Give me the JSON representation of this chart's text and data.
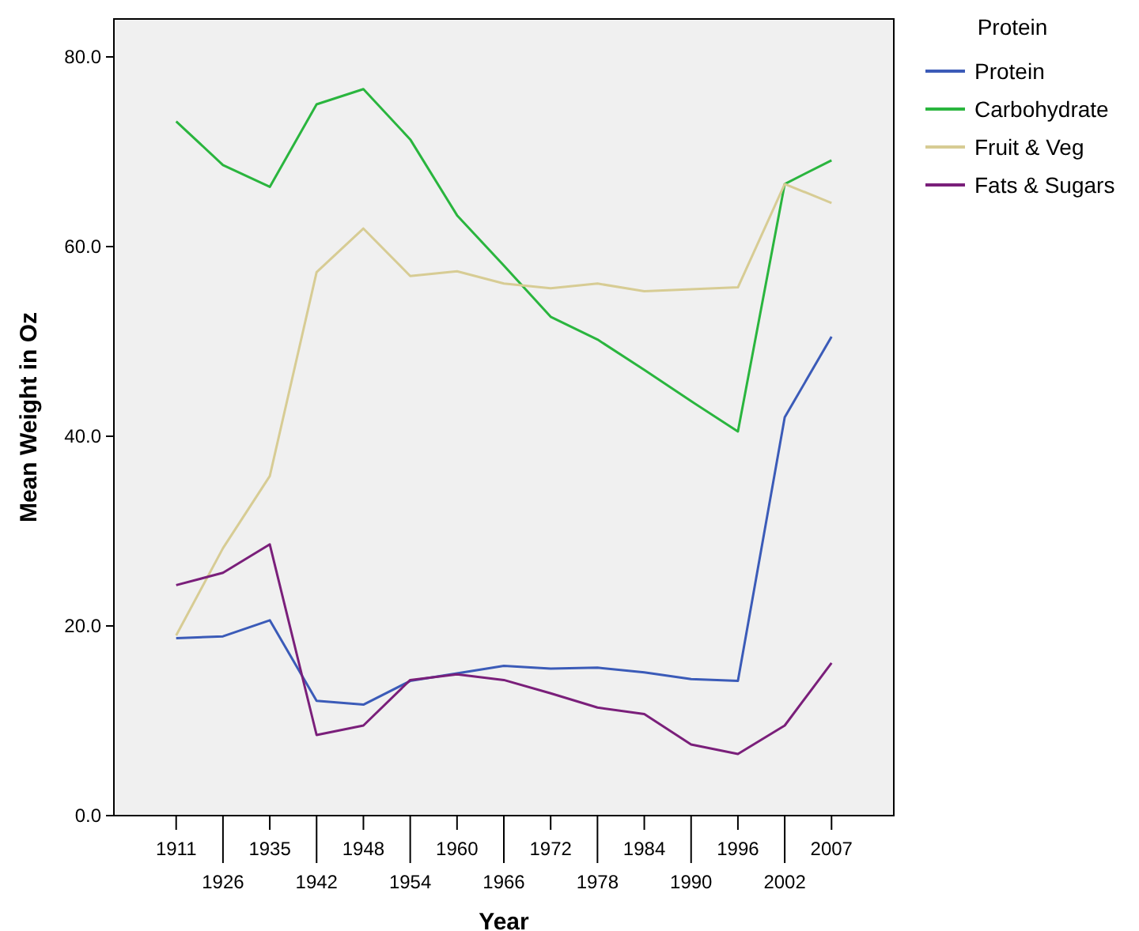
{
  "chart_data": {
    "type": "line",
    "xlabel": "Year",
    "ylabel": "Mean Weight in Oz",
    "legend_title": "Protein",
    "legend": "right",
    "grid": false,
    "categories": [
      "1911",
      "1926",
      "1935",
      "1942",
      "1948",
      "1954",
      "1960",
      "1966",
      "1972",
      "1978",
      "1984",
      "1990",
      "1996",
      "2002",
      "2007"
    ],
    "ylim": [
      0,
      84
    ],
    "yticks": [
      {
        "value": 0,
        "label": "0.0"
      },
      {
        "value": 20,
        "label": "20.0"
      },
      {
        "value": 40,
        "label": "40.0"
      },
      {
        "value": 60,
        "label": "60.0"
      },
      {
        "value": 80,
        "label": "80.0"
      }
    ],
    "series": [
      {
        "name": "Protein",
        "color": "#3b5bb8",
        "values": [
          18.7,
          18.9,
          20.6,
          12.1,
          11.7,
          14.2,
          15.0,
          15.8,
          15.5,
          15.6,
          15.1,
          14.4,
          14.2,
          42.0,
          50.5
        ]
      },
      {
        "name": "Carbohydrate",
        "color": "#2ab53e",
        "values": [
          73.2,
          68.6,
          66.3,
          75.0,
          76.6,
          71.3,
          63.3,
          58.0,
          52.6,
          50.2,
          47.0,
          43.7,
          40.5,
          66.6,
          69.1
        ]
      },
      {
        "name": "Fruit & Veg",
        "color": "#d7cc94",
        "values": [
          19.0,
          28.2,
          35.8,
          57.3,
          61.9,
          56.9,
          57.4,
          56.1,
          55.6,
          56.1,
          55.3,
          55.5,
          55.7,
          66.6,
          64.6
        ]
      },
      {
        "name": "Fats & Sugars",
        "color": "#7a1f7a",
        "values": [
          24.3,
          25.6,
          28.6,
          8.5,
          9.5,
          14.3,
          14.9,
          14.3,
          12.9,
          11.4,
          10.7,
          7.5,
          6.5,
          9.5,
          16.1
        ]
      }
    ]
  }
}
